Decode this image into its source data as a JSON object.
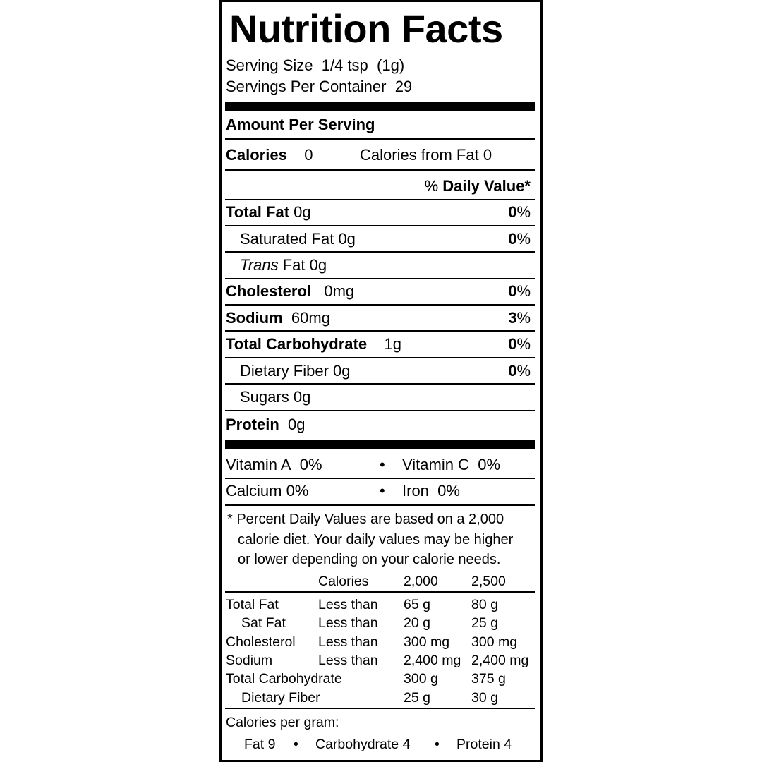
{
  "title": "Nutrition Facts",
  "serving_size": {
    "label": "Serving Size",
    "value": "1/4 tsp  (1g)"
  },
  "servings_per_container": {
    "label": "Servings Per Container",
    "value": "29"
  },
  "amount_per_serving": "Amount Per Serving",
  "calories": {
    "label": "Calories",
    "value": "0",
    "from_fat_label": "Calories from Fat",
    "from_fat_value": "0"
  },
  "daily_value_header": {
    "pct": "%",
    "label": "Daily Value*"
  },
  "nutrients": [
    {
      "label": "Total Fat",
      "amount": "0g",
      "dv": "0",
      "pct": "%"
    },
    {
      "label": "Saturated Fat",
      "amount": "0g",
      "dv": "0",
      "pct": "%"
    },
    {
      "label": "Trans",
      "label2": "Fat",
      "amount": "0g"
    },
    {
      "label": "Cholesterol",
      "amount": "0mg",
      "dv": "0",
      "pct": "%"
    },
    {
      "label": "Sodium",
      "amount": "60mg",
      "dv": "3",
      "pct": "%"
    },
    {
      "label": "Total Carbohydrate",
      "amount": "1g",
      "dv": "0",
      "pct": "%"
    },
    {
      "label": "Dietary Fiber",
      "amount": "0g",
      "dv": "0",
      "pct": "%"
    },
    {
      "label": "Sugars",
      "amount": "0g"
    },
    {
      "label": "Protein",
      "amount": "0g"
    }
  ],
  "vitamins": [
    {
      "label": "Vitamin A",
      "value": "0%"
    },
    {
      "label": "Vitamin C",
      "value": "0%"
    },
    {
      "label": "Calcium",
      "value": "0%"
    },
    {
      "label": "Iron",
      "value": "0%"
    }
  ],
  "bullet": "•",
  "footnote": [
    "* Percent Daily Values are based on a 2,000",
    "calorie diet. Your daily values may be higher",
    "or lower depending on your calorie needs."
  ],
  "dv_table": {
    "header": [
      "Calories",
      "2,000",
      "2,500"
    ],
    "rows": [
      [
        "Total Fat",
        "Less than",
        "65 g",
        "80 g"
      ],
      [
        "Sat Fat",
        "Less than",
        "20 g",
        "25 g"
      ],
      [
        "Cholesterol",
        "Less than",
        "300 mg",
        "300 mg"
      ],
      [
        "Sodium",
        "Less than",
        "2,400 mg",
        "2,400 mg"
      ],
      [
        "Total Carbohydrate",
        "",
        "300 g",
        "375 g"
      ],
      [
        "Dietary Fiber",
        "",
        "25 g",
        "30 g"
      ]
    ]
  },
  "calories_per_gram": {
    "label": "Calories per gram:",
    "fat": "Fat 9",
    "carb": "Carbohydrate 4",
    "protein": "Protein 4"
  }
}
